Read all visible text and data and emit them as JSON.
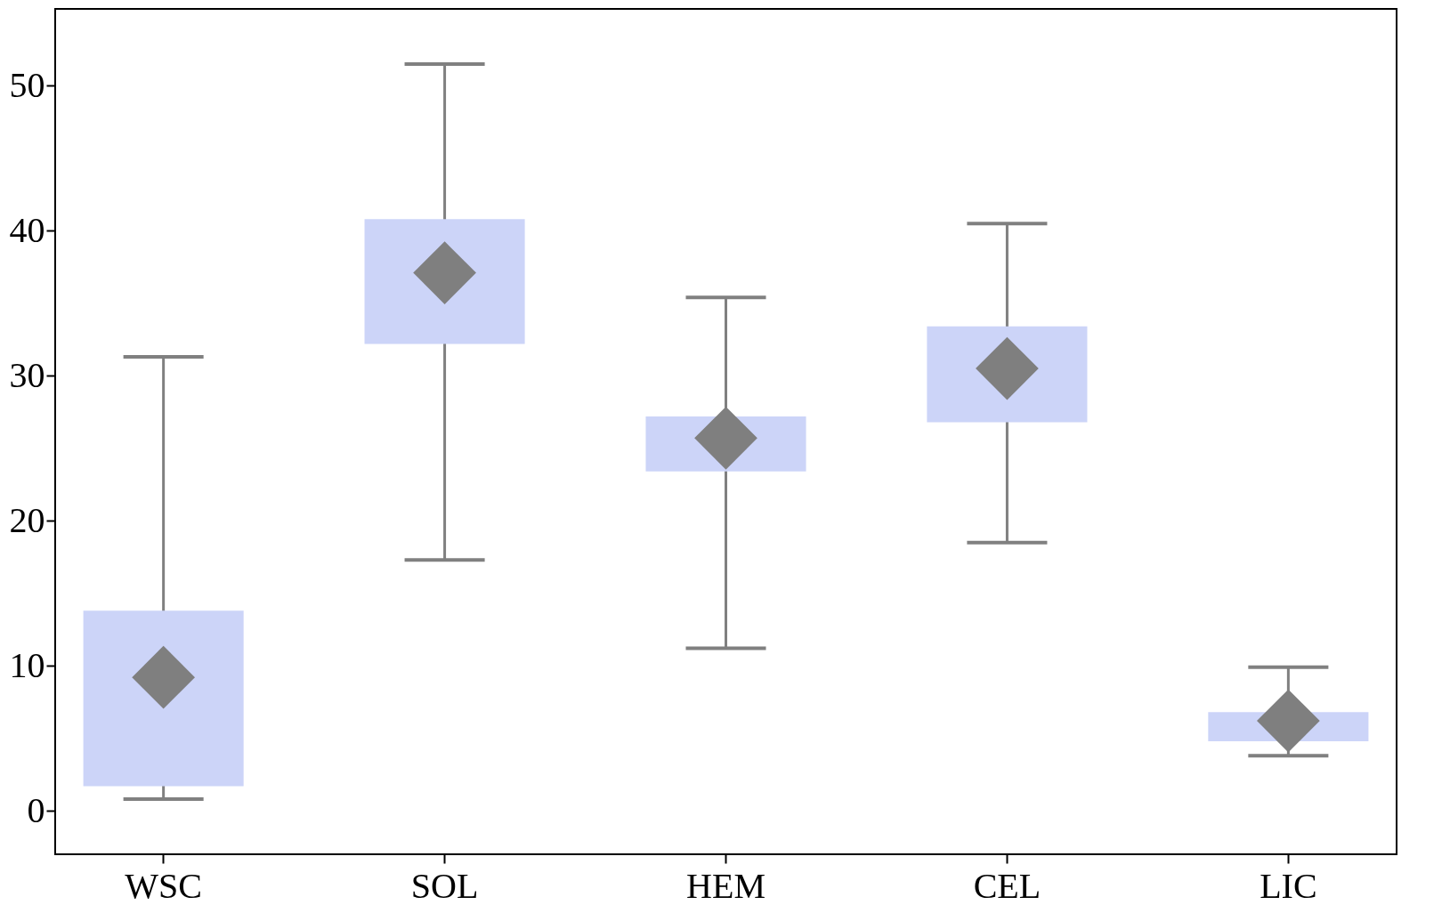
{
  "chart_data": {
    "type": "box",
    "categories": [
      "WSC",
      "SOL",
      "HEM",
      "CEL",
      "LIC"
    ],
    "boxes": [
      {
        "low": 0.8,
        "q1": 1.7,
        "median": 9.2,
        "q3": 13.8,
        "high": 31.3
      },
      {
        "low": 17.3,
        "q1": 32.2,
        "median": 37.1,
        "q3": 40.8,
        "high": 51.5
      },
      {
        "low": 11.2,
        "q1": 23.4,
        "median": 25.7,
        "q3": 27.2,
        "high": 35.4
      },
      {
        "low": 18.5,
        "q1": 26.8,
        "median": 30.5,
        "q3": 33.4,
        "high": 40.5
      },
      {
        "low": 3.8,
        "q1": 4.8,
        "median": 6.2,
        "q3": 6.8,
        "high": 9.9
      }
    ],
    "series": [
      {
        "type": "scatter",
        "color": "#7f7f7f",
        "x": [
          "WSC",
          "SOL",
          "HEM",
          "CEL",
          "LIC"
        ],
        "values": [
          9.2,
          37.1,
          25.7,
          30.5,
          6.2
        ]
      }
    ],
    "color": "#ccd4f8",
    "marker": "diamond",
    "ylim": [
      -3,
      55.3
    ],
    "yticks": [
      0,
      10,
      20,
      30,
      40,
      50
    ]
  }
}
